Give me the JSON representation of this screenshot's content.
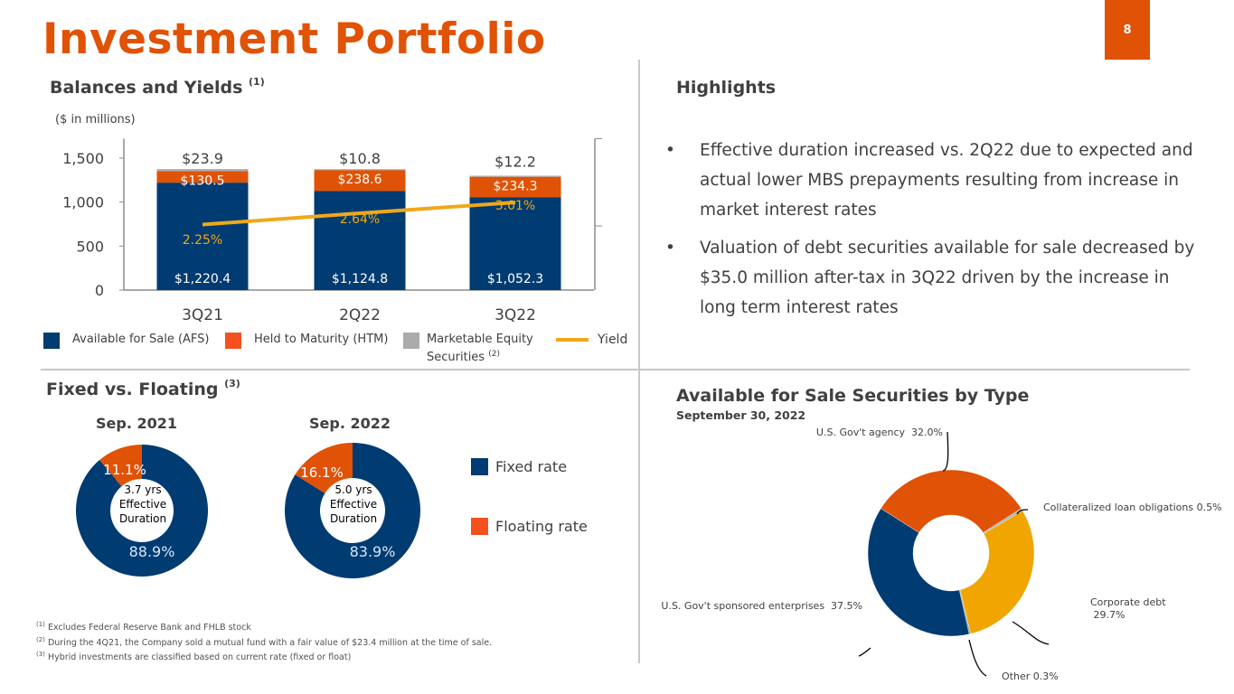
{
  "page": {
    "title": "Investment Portfolio",
    "page_number": "8",
    "brand_color": "#E05206"
  },
  "balances": {
    "title": "Balances and Yields",
    "title_note": "(1)",
    "units": "($ in millions)",
    "legend": [
      {
        "label": "Available for Sale (AFS)",
        "color": "#003B71",
        "note": ""
      },
      {
        "label": "Held to Maturity (HTM)",
        "color": "#F4511E",
        "note": ""
      },
      {
        "label": "Marketable Equity Securities",
        "color": "#ABABAB",
        "note": "(2)"
      },
      {
        "label": "Yield",
        "color": "#F0A818",
        "note": ""
      }
    ]
  },
  "highlights": {
    "title": "Highlights",
    "bullet_char": "•",
    "items": [
      "Effective duration increased vs. 2Q22 due to expected and actual lower MBS prepayments resulting from increase in market interest rates",
      "Valuation of debt securities available for sale decreased by $35.0 million after-tax in 3Q22 driven by the increase in long term interest rates"
    ]
  },
  "fixed_floating": {
    "title": "Fixed vs. Floating",
    "title_note": "(3)",
    "legend": [
      {
        "label": "Fixed rate",
        "color": "#003B71"
      },
      {
        "label": "Floating rate",
        "color": "#F4511E"
      }
    ]
  },
  "afs_by_type": {
    "title": "Available for Sale Securities by Type",
    "subtitle": "September 30, 2022"
  },
  "footnotes": [
    {
      "num": "(1)",
      "text": "Excludes Federal Reserve Bank and FHLB stock"
    },
    {
      "num": "(2)",
      "text": "During the 4Q21, the Company sold a mutual fund with a fair value of $23.4 million at the time of sale."
    },
    {
      "num": "(3)",
      "text": "Hybrid investments are classified based on current rate (fixed or float)"
    }
  ],
  "chart_data": [
    {
      "type": "bar",
      "stacked": true,
      "title": "Balances and Yields",
      "ylabel": "($ in millions)",
      "categories": [
        "3Q21",
        "2Q22",
        "3Q22"
      ],
      "ylim": [
        0,
        1720
      ],
      "yticks": [
        0,
        500,
        1000,
        1500
      ],
      "ytick_labels": [
        "0",
        "500",
        "1,000",
        "1,500"
      ],
      "series": [
        {
          "name": "Available for Sale (AFS)",
          "color": "#003B71",
          "values": [
            1220.4,
            1124.8,
            1052.3
          ],
          "labels": [
            "$1,220.4",
            "$1,124.8",
            "$1,052.3"
          ]
        },
        {
          "name": "Held to Maturity (HTM)",
          "color": "#E05206",
          "values": [
            130.5,
            238.6,
            234.3
          ],
          "labels": [
            "$130.5",
            "$238.6",
            "$234.3"
          ]
        },
        {
          "name": "Marketable Equity Securities",
          "color": "#ABABAB",
          "values": [
            23.9,
            10.8,
            12.2
          ],
          "labels": [
            "$23.9",
            "$10.8",
            "$12.2"
          ]
        }
      ],
      "line_series": {
        "name": "Yield",
        "color": "#F0A818",
        "values": [
          2.25,
          2.64,
          3.01
        ],
        "labels": [
          "2.25%",
          "2.64%",
          "3.01%"
        ],
        "secondary_axis": true,
        "y2lim": [
          0,
          5.2
        ]
      },
      "grid": false,
      "legend": "bottom"
    },
    {
      "type": "pie",
      "donut": true,
      "title": "Sep. 2021",
      "center_text": [
        "3.7 yrs",
        "Effective",
        "Duration"
      ],
      "slices": [
        {
          "name": "Fixed rate",
          "value": 88.9,
          "label": "88.9%",
          "color": "#003B71"
        },
        {
          "name": "Floating rate",
          "value": 11.1,
          "label": "11.1%",
          "color": "#E05206"
        }
      ]
    },
    {
      "type": "pie",
      "donut": true,
      "title": "Sep. 2022",
      "center_text": [
        "5.0 yrs",
        "Effective",
        "Duration"
      ],
      "slices": [
        {
          "name": "Fixed rate",
          "value": 83.9,
          "label": "83.9%",
          "color": "#003B71"
        },
        {
          "name": "Floating rate",
          "value": 16.1,
          "label": "16.1%",
          "color": "#E05206"
        }
      ]
    },
    {
      "type": "pie",
      "donut": true,
      "title": "Available for Sale Securities by Type",
      "subtitle": "September 30, 2022",
      "slices": [
        {
          "name": "U.S. Gov't agency",
          "value": 32.0,
          "label": "U.S. Gov't agency  32.0%",
          "color": "#E05206"
        },
        {
          "name": "Collateralized loan obligations",
          "value": 0.5,
          "label": "Collateralized loan obligations 0.5%",
          "color": "#9FB6BE"
        },
        {
          "name": "Corporate debt",
          "value": 29.7,
          "label": "Corporate debt\n 29.7%",
          "color": "#F0A500"
        },
        {
          "name": "Other",
          "value": 0.3,
          "label": "Other 0.3%",
          "color": "#8AA0A8"
        },
        {
          "name": "U.S. Gov't sponsored enterprises",
          "value": 37.5,
          "label": "U.S. Gov't sponsored enterprises  37.5%",
          "color": "#003B71"
        }
      ]
    }
  ]
}
